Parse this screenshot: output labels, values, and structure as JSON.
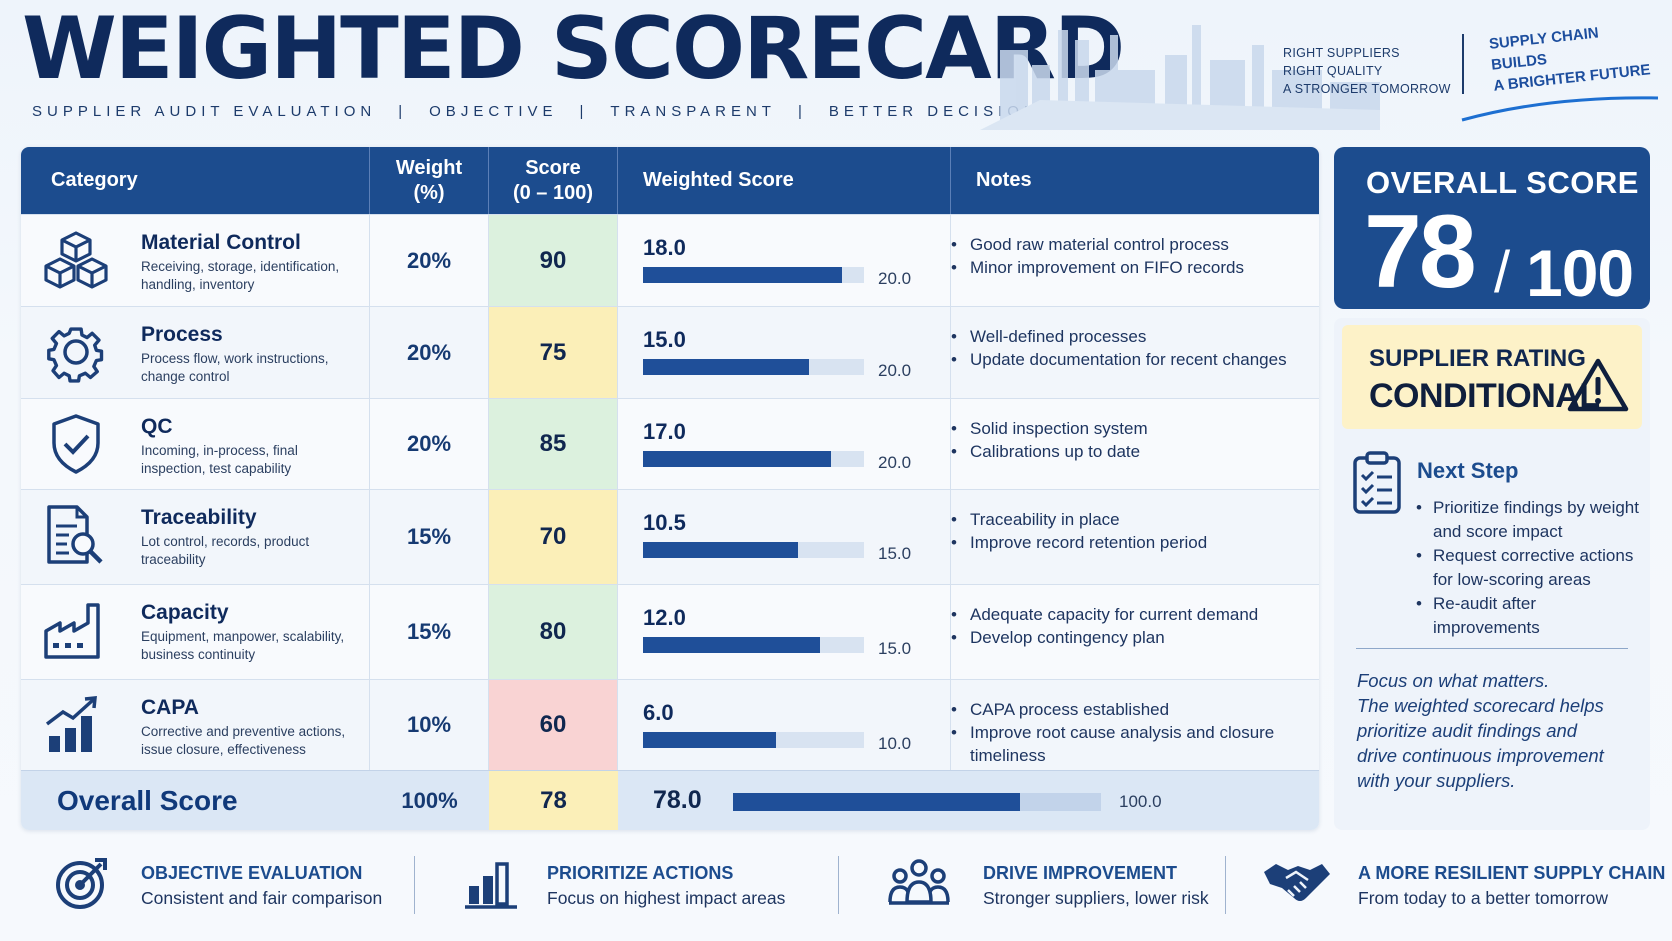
{
  "header": {
    "title": "WEIGHTED SCORECARD",
    "subtitle_parts": [
      "SUPPLIER AUDIT EVALUATION",
      "OBJECTIVE",
      "TRANSPARENT",
      "BETTER DECISIONS"
    ],
    "separator": "|",
    "tagline": [
      "RIGHT SUPPLIERS",
      "RIGHT QUALITY",
      "A STRONGER TOMORROW"
    ],
    "slogan": [
      "SUPPLY CHAIN",
      "BUILDS",
      "A BRIGHTER FUTURE"
    ]
  },
  "table": {
    "headers": {
      "category": "Category",
      "weight": "Weight",
      "weight_unit": "(%)",
      "score": "Score",
      "score_range": "(0 – 100)",
      "weighted": "Weighted Score",
      "notes": "Notes"
    },
    "rows": [
      {
        "icon": "cubes-icon",
        "name": "Material Control",
        "desc": "Receiving, storage, identification, handling, inventory",
        "weight": "20%",
        "score": "90",
        "score_color": "green",
        "weighted": "18.0",
        "weighted_value": 18.0,
        "max": "20.0",
        "max_value": 20.0,
        "notes": [
          "Good raw material control process",
          "Minor improvement on FIFO records"
        ]
      },
      {
        "icon": "gear-icon",
        "name": "Process",
        "desc": "Process flow, work instructions, change control",
        "weight": "20%",
        "score": "75",
        "score_color": "yellow",
        "weighted": "15.0",
        "weighted_value": 15.0,
        "max": "20.0",
        "max_value": 20.0,
        "notes": [
          "Well-defined processes",
          "Update documentation for recent changes"
        ]
      },
      {
        "icon": "shield-check-icon",
        "name": "QC",
        "desc": "Incoming, in-process, final inspection, test capability",
        "weight": "20%",
        "score": "85",
        "score_color": "green",
        "weighted": "17.0",
        "weighted_value": 17.0,
        "max": "20.0",
        "max_value": 20.0,
        "notes": [
          "Solid inspection system",
          "Calibrations up to date"
        ]
      },
      {
        "icon": "document-search-icon",
        "name": "Traceability",
        "desc": "Lot control, records, product traceability",
        "weight": "15%",
        "score": "70",
        "score_color": "yellow",
        "weighted": "10.5",
        "weighted_value": 10.5,
        "max": "15.0",
        "max_value": 15.0,
        "notes": [
          "Traceability in place",
          "Improve record retention period"
        ]
      },
      {
        "icon": "factory-icon",
        "name": "Capacity",
        "desc": "Equipment, manpower, scalability, business continuity",
        "weight": "15%",
        "score": "80",
        "score_color": "green",
        "weighted": "12.0",
        "weighted_value": 12.0,
        "max": "15.0",
        "max_value": 15.0,
        "notes": [
          "Adequate capacity for current demand",
          "Develop contingency plan"
        ]
      },
      {
        "icon": "growth-chart-icon",
        "name": "CAPA",
        "desc": "Corrective and preventive actions, issue closure, effectiveness",
        "weight": "10%",
        "score": "60",
        "score_color": "red",
        "weighted": "6.0",
        "weighted_value": 6.0,
        "max": "10.0",
        "max_value": 10.0,
        "notes": [
          "CAPA process established",
          "Improve root cause analysis and closure timeliness"
        ]
      }
    ],
    "total": {
      "label": "Overall Score",
      "weight": "100%",
      "score": "78",
      "weighted": "78.0",
      "weighted_value": 78.0,
      "max": "100.0",
      "max_value": 100.0
    }
  },
  "overall": {
    "label": "OVERALL SCORE",
    "score": "78",
    "slash": "/",
    "max": "100"
  },
  "rating": {
    "label": "SUPPLIER RATING",
    "value": "CONDITIONAL"
  },
  "next_step": {
    "title": "Next Step",
    "items": [
      "Prioritize findings by weight and score impact",
      "Request corrective actions for low-scoring areas",
      "Re-audit after improvements"
    ]
  },
  "focus": [
    "Focus on what matters.",
    "The weighted scorecard helps",
    "prioritize audit findings and",
    "drive continuous improvement",
    "with your suppliers."
  ],
  "footer": [
    {
      "icon": "target-icon",
      "title": "OBJECTIVE EVALUATION",
      "sub": "Consistent and fair comparison"
    },
    {
      "icon": "bar-chart-icon",
      "title": "PRIORITIZE ACTIONS",
      "sub": "Focus on highest impact areas"
    },
    {
      "icon": "team-icon",
      "title": "DRIVE IMPROVEMENT",
      "sub": "Stronger suppliers, lower risk"
    },
    {
      "icon": "handshake-icon",
      "title": "A MORE RESILIENT SUPPLY CHAIN",
      "sub": "From today to a better tomorrow"
    }
  ],
  "colors": {
    "primary": "#1c4c8e",
    "navy": "#0f2a5c",
    "green": "#dcf1de",
    "yellow": "#fbefb8",
    "red": "#f9d3d3",
    "bar": "#1f4f99"
  }
}
